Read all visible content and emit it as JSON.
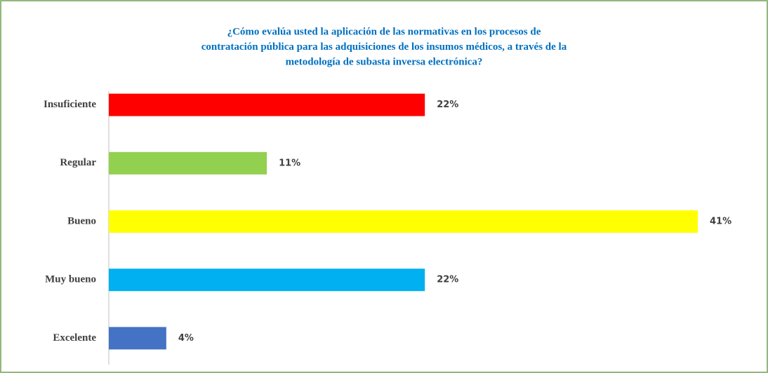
{
  "chart_data": {
    "type": "bar",
    "orientation": "horizontal",
    "title": [
      "¿Cómo evalúa usted la aplicación de las normativas  en los procesos de",
      "contratación pública para las adquisiciones de los insumos médicos, a través de la",
      "metodología  de subasta inversa electrónica?"
    ],
    "categories": [
      "Insuficiente",
      "Regular",
      "Bueno",
      "Muy bueno",
      "Excelente"
    ],
    "values": [
      22,
      11,
      41,
      22,
      4
    ],
    "value_labels": [
      "22%",
      "11%",
      "41%",
      "22%",
      "4%"
    ],
    "colors": [
      "#ff0000",
      "#92d050",
      "#ffff00",
      "#00b0f0",
      "#4472c4"
    ]
  }
}
